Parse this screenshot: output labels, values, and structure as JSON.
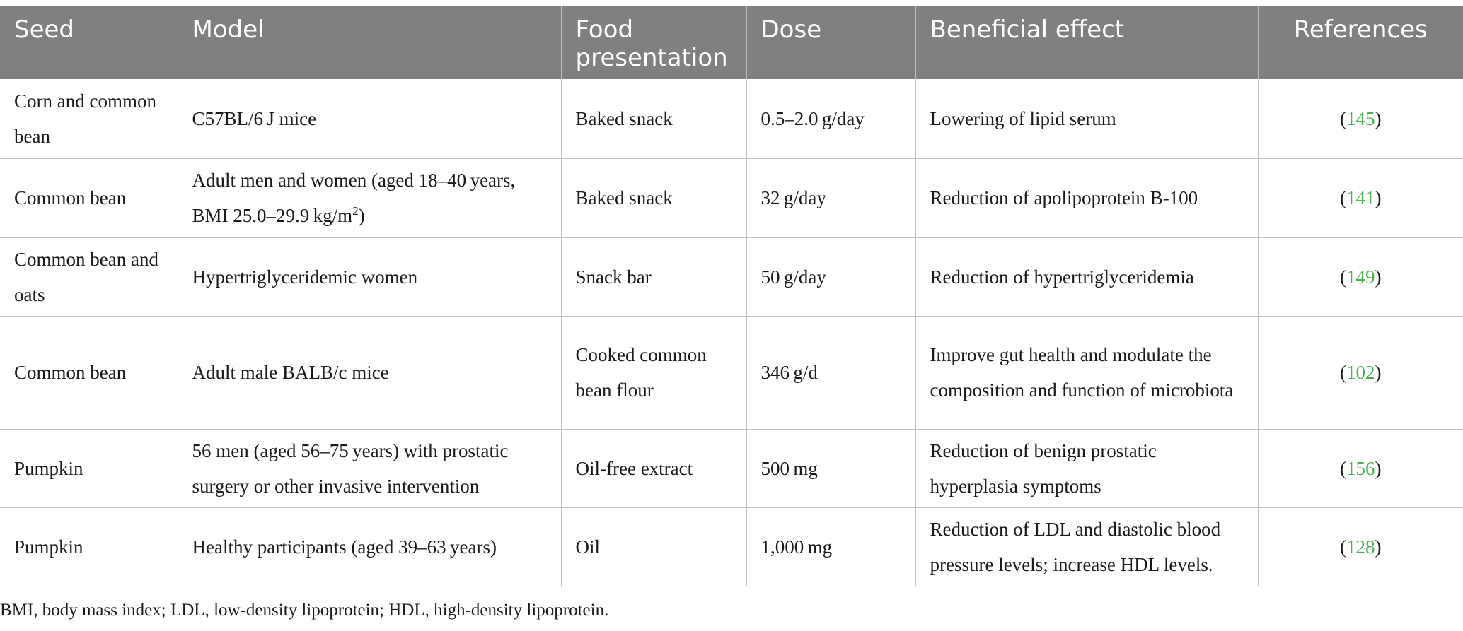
{
  "table": {
    "headers": [
      "Seed",
      "Model",
      "Food presentation",
      "Dose",
      "Beneficial effect",
      "References"
    ],
    "rows": [
      {
        "seed": "Corn and common bean",
        "model": "C57BL/6 J mice",
        "model_sup": "",
        "model_after": "",
        "food": "Baked snack",
        "dose": "0.5–2.0 g/day",
        "effect": "Lowering of lipid serum",
        "ref_num": "145"
      },
      {
        "seed": "Common bean",
        "model": "Adult men and women (aged 18–40 years, BMI 25.0–29.9 kg/m",
        "model_sup": "2",
        "model_after": ")",
        "food": "Baked snack",
        "dose": "32 g/day",
        "effect": "Reduction of apolipoprotein B-100",
        "ref_num": "141"
      },
      {
        "seed": "Common bean and oats",
        "model": "Hypertriglyceridemic women",
        "model_sup": "",
        "model_after": "",
        "food": "Snack bar",
        "dose": "50 g/day",
        "effect": "Reduction of hypertriglyceridemia",
        "ref_num": "149"
      },
      {
        "seed": "Common bean",
        "model": "Adult male BALB/c mice",
        "model_sup": "",
        "model_after": "",
        "food": "Cooked common bean flour",
        "dose": "346 g/d",
        "effect": "Improve gut health and modulate the composition and function of microbiota",
        "ref_num": "102"
      },
      {
        "seed": "Pumpkin",
        "model": "56 men (aged 56–75 years) with prostatic surgery or other invasive intervention",
        "model_sup": "",
        "model_after": "",
        "food": "Oil-free extract",
        "dose": "500 mg",
        "effect": "Reduction of benign prostatic hyperplasia symptoms",
        "ref_num": "156"
      },
      {
        "seed": "Pumpkin",
        "model": "Healthy participants (aged 39–63 years)",
        "model_sup": "",
        "model_after": "",
        "food": "Oil",
        "dose": "1,000 mg",
        "effect": "Reduction of LDL and diastolic blood pressure levels; increase HDL levels.",
        "ref_num": "128"
      }
    ]
  },
  "footnote": "BMI, body mass index; LDL, low-density lipoprotein; HDL, high-density lipoprotein.",
  "colors": {
    "header_bg": "#808080",
    "header_text": "#ffffff",
    "ref_link": "#4caf50",
    "border": "#bfbfbf"
  }
}
